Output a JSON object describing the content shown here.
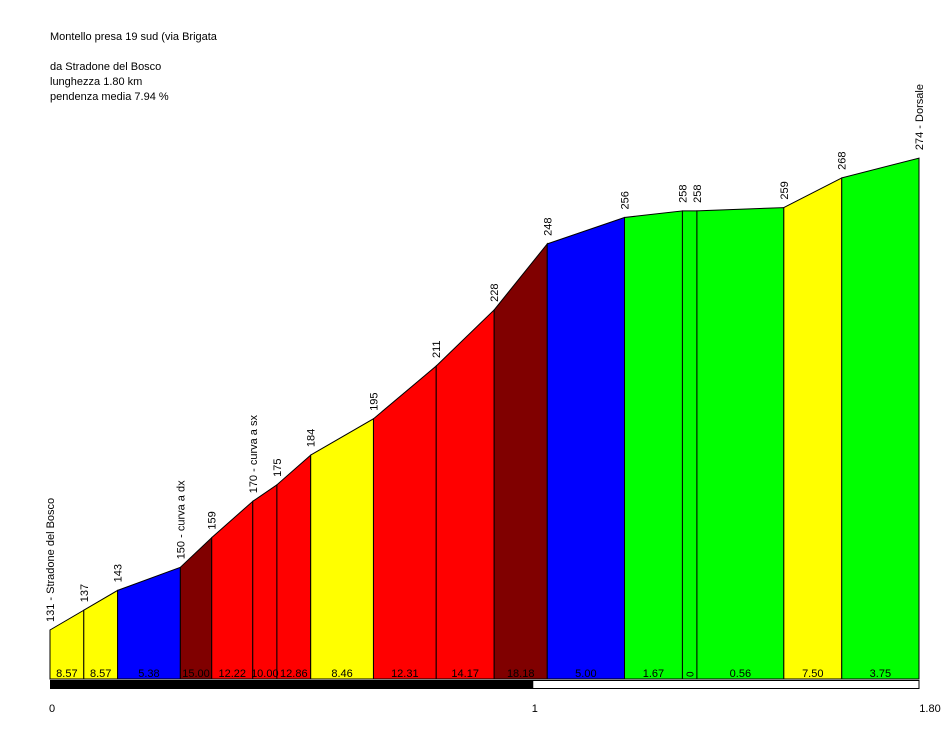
{
  "header": {
    "title": "Montello presa 19 sud (via Brigata",
    "start": "da Stradone del Bosco",
    "length": "lunghezza 1.80 km",
    "avg_grade": "pendenza media 7.94 %"
  },
  "colors": {
    "yellow": "#ffff00",
    "blue": "#0000ff",
    "dark_red": "#800000",
    "red": "#ff0000",
    "green": "#00ff00"
  },
  "chart_data": {
    "type": "area",
    "xlabel": "",
    "ylabel": "",
    "x_unit": "km",
    "xlim": [
      0,
      1.8
    ],
    "x_ticks": [
      {
        "value": 0,
        "label": "0"
      },
      {
        "value": 1,
        "label": "1"
      },
      {
        "value": 1.8,
        "label": "1.80"
      }
    ],
    "profile": [
      {
        "x": 0.0,
        "elev": 131,
        "label": "131 - Stradone del Bosco"
      },
      {
        "x": 0.07,
        "elev": 137,
        "label": "137"
      },
      {
        "x": 0.14,
        "elev": 143,
        "label": "143"
      },
      {
        "x": 0.27,
        "elev": 150,
        "label": "150 - curva a dx"
      },
      {
        "x": 0.335,
        "elev": 159,
        "label": "159"
      },
      {
        "x": 0.42,
        "elev": 170,
        "label": "170 - curva a sx"
      },
      {
        "x": 0.47,
        "elev": 175,
        "label": "175"
      },
      {
        "x": 0.54,
        "elev": 184,
        "label": "184"
      },
      {
        "x": 0.67,
        "elev": 195,
        "label": "195"
      },
      {
        "x": 0.8,
        "elev": 211,
        "label": "211"
      },
      {
        "x": 0.92,
        "elev": 228,
        "label": "228"
      },
      {
        "x": 1.03,
        "elev": 248,
        "label": "248"
      },
      {
        "x": 1.19,
        "elev": 256,
        "label": "256"
      },
      {
        "x": 1.31,
        "elev": 258,
        "label": "258"
      },
      {
        "x": 1.34,
        "elev": 258,
        "label": "258"
      },
      {
        "x": 1.52,
        "elev": 259,
        "label": "259"
      },
      {
        "x": 1.64,
        "elev": 268,
        "label": "268"
      },
      {
        "x": 1.8,
        "elev": 274,
        "label": "274 - Dorsale"
      }
    ],
    "segments": [
      {
        "grade": "8.57",
        "color": "yellow"
      },
      {
        "grade": "8.57",
        "color": "yellow"
      },
      {
        "grade": "5.38",
        "color": "blue"
      },
      {
        "grade": "15.00",
        "color": "dark_red"
      },
      {
        "grade": "12.22",
        "color": "red"
      },
      {
        "grade": "10.00",
        "color": "red"
      },
      {
        "grade": "12.86",
        "color": "red"
      },
      {
        "grade": "8.46",
        "color": "yellow"
      },
      {
        "grade": "12.31",
        "color": "red"
      },
      {
        "grade": "14.17",
        "color": "red"
      },
      {
        "grade": "18.18",
        "color": "dark_red"
      },
      {
        "grade": "5.00",
        "color": "blue"
      },
      {
        "grade": "1.67",
        "color": "green"
      },
      {
        "grade": "0",
        "color": "green"
      },
      {
        "grade": "0.56",
        "color": "green"
      },
      {
        "grade": "7.50",
        "color": "yellow"
      },
      {
        "grade": "3.75",
        "color": "green"
      }
    ]
  }
}
